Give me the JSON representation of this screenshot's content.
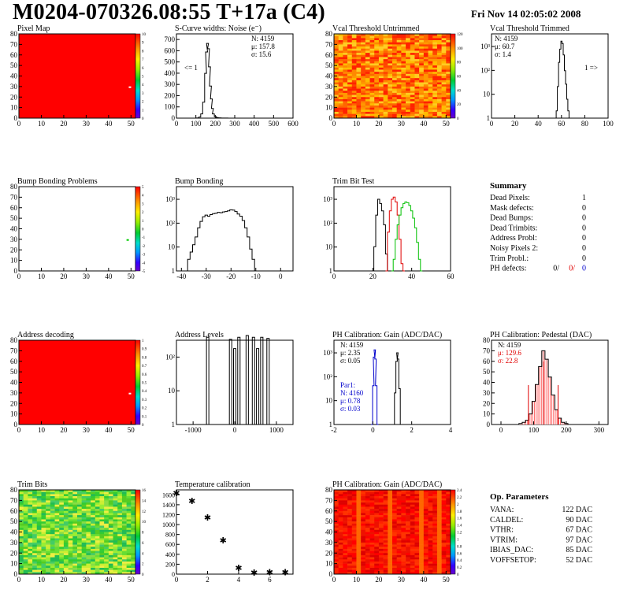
{
  "header": {
    "title": "M0204-070326.08:55 T+17a (C4)",
    "date": "Fri Nov 14 02:05:02 2008"
  },
  "colors": {
    "red_map": "#ff0000",
    "black_line": "#000000",
    "red_line": "#e00000",
    "green_line": "#00c000",
    "blue_line": "#0000cc",
    "green_dot": "#00cc00"
  },
  "panels": [
    {
      "id": "pixel-map",
      "title": "Pixel Map",
      "x_ticks": [
        "0",
        "10",
        "20",
        "30",
        "40",
        "50"
      ],
      "y_ticks": [
        "0",
        "10",
        "20",
        "30",
        "40",
        "50",
        "60",
        "70",
        "80"
      ],
      "z_ticks": [
        "0",
        "1",
        "2",
        "3",
        "4",
        "5",
        "6",
        "7",
        "8",
        "9",
        "10"
      ]
    },
    {
      "id": "scurve-noise",
      "title": "S-Curve widths: Noise (e⁻)",
      "x_ticks": [
        "0",
        "100",
        "200",
        "300",
        "400",
        "500",
        "600"
      ],
      "y_ticks": [
        "0",
        "100",
        "200",
        "300",
        "400",
        "500",
        "600",
        "700"
      ],
      "stats": [
        "N: 4159",
        "μ: 157.8",
        "σ: 15.6"
      ],
      "annotation": "<= 1"
    },
    {
      "id": "vcal-untrimmed",
      "title": "Vcal Threshold Untrimmed",
      "x_ticks": [
        "0",
        "10",
        "20",
        "30",
        "40",
        "50"
      ],
      "y_ticks": [
        "0",
        "10",
        "20",
        "30",
        "40",
        "50",
        "60",
        "70",
        "80"
      ],
      "z_ticks": [
        "0",
        "20",
        "40",
        "60",
        "80",
        "100",
        "120"
      ]
    },
    {
      "id": "vcal-trimmed",
      "title": "Vcal Threshold Trimmed",
      "x_ticks": [
        "0",
        "20",
        "40",
        "60",
        "80",
        "100"
      ],
      "y_ticks": [
        "1",
        "10",
        "10²",
        "10³"
      ],
      "stats": [
        "N: 4159",
        "μ: 60.7",
        "σ:  1.4"
      ],
      "annotation": "1 =>"
    },
    {
      "id": "bump-problems",
      "title": "Bump Bonding Problems",
      "x_ticks": [
        "0",
        "10",
        "20",
        "30",
        "40",
        "50"
      ],
      "y_ticks": [
        "0",
        "10",
        "20",
        "30",
        "40",
        "50",
        "60",
        "70",
        "80"
      ],
      "z_ticks": [
        "-5",
        "-4",
        "-3",
        "-2",
        "-1",
        "0",
        "1",
        "2",
        "3",
        "4",
        "5"
      ]
    },
    {
      "id": "bump-bonding",
      "title": "Bump Bonding",
      "x_ticks": [
        "-40",
        "-30",
        "-20",
        "-10",
        "0"
      ],
      "y_ticks": [
        "1",
        "10",
        "10²",
        "10³"
      ]
    },
    {
      "id": "trim-bit-test",
      "title": "Trim Bit Test",
      "x_ticks": [
        "0",
        "20",
        "40",
        "60"
      ],
      "y_ticks": [
        "1",
        "10",
        "10²",
        "10³"
      ]
    },
    {
      "id": "address-decoding",
      "title": "Address decoding",
      "x_ticks": [
        "0",
        "10",
        "20",
        "30",
        "40",
        "50"
      ],
      "y_ticks": [
        "0",
        "10",
        "20",
        "30",
        "40",
        "50",
        "60",
        "70",
        "80"
      ],
      "z_ticks": [
        "0",
        "0.1",
        "0.2",
        "0.3",
        "0.4",
        "0.5",
        "0.6",
        "0.7",
        "0.8",
        "0.9",
        "1"
      ]
    },
    {
      "id": "address-levels",
      "title": "Address Levels",
      "x_ticks": [
        "-1000",
        "0",
        "1000"
      ],
      "y_ticks": [
        "1",
        "10",
        "10²"
      ]
    },
    {
      "id": "ph-gain",
      "title": "PH Calibration: Gain (ADC/DAC)",
      "x_ticks": [
        "-2",
        "0",
        "2",
        "4"
      ],
      "y_ticks": [
        "1",
        "10",
        "10²",
        "10³"
      ],
      "stats": [
        "N: 4159",
        "μ: 2.35",
        "σ: 0.05"
      ],
      "stats2": [
        "Par1:",
        "N: 4160",
        "μ: 0.78",
        "σ: 0.03"
      ]
    },
    {
      "id": "ph-pedestal",
      "title": "PH Calibration: Pedestal (DAC)",
      "x_ticks": [
        "0",
        "100",
        "200",
        "300"
      ],
      "y_ticks": [
        "0",
        "10",
        "20",
        "30",
        "40",
        "50",
        "60",
        "70",
        "80"
      ],
      "stats": [
        "N: 4159",
        "μ: 129.6",
        "σ: 22.8"
      ]
    },
    {
      "id": "trim-bits",
      "title": "Trim Bits",
      "x_ticks": [
        "0",
        "10",
        "20",
        "30",
        "40",
        "50"
      ],
      "y_ticks": [
        "0",
        "10",
        "20",
        "30",
        "40",
        "50",
        "60",
        "70",
        "80"
      ],
      "z_ticks": [
        "0",
        "2",
        "4",
        "6",
        "8",
        "10",
        "12",
        "14",
        "16"
      ]
    },
    {
      "id": "temperature-calibration",
      "title": "Temperature calibration",
      "x_ticks": [
        "0",
        "2",
        "4",
        "6"
      ],
      "y_ticks": [
        "0",
        "200",
        "400",
        "600",
        "800",
        "1000",
        "1200",
        "1400",
        "1600"
      ]
    },
    {
      "id": "ph-gain-map",
      "title": "PH Calibration: Gain (ADC/DAC)",
      "x_ticks": [
        "0",
        "10",
        "20",
        "30",
        "40",
        "50"
      ],
      "y_ticks": [
        "0",
        "10",
        "20",
        "30",
        "40",
        "50",
        "60",
        "70",
        "80"
      ],
      "z_ticks": [
        "0",
        "0.2",
        "0.4",
        "0.6",
        "0.8",
        "1",
        "1.2",
        "1.4",
        "1.6",
        "1.8",
        "2",
        "2.2",
        "2.4"
      ]
    }
  ],
  "summary": {
    "title": "Summary",
    "rows": [
      {
        "label": "Dead Pixels:",
        "value": "1"
      },
      {
        "label": "Mask defects:",
        "value": "0"
      },
      {
        "label": "Dead Bumps:",
        "value": "0"
      },
      {
        "label": "Dead Trimbits:",
        "value": "0"
      },
      {
        "label": "Address Probl:",
        "value": "0"
      },
      {
        "label": "Noisy Pixels 2:",
        "value": "0"
      },
      {
        "label": "Trim Probl.:",
        "value": "0"
      }
    ],
    "ph_label": "PH defects:",
    "ph_values": [
      "0/",
      "0/",
      "0"
    ]
  },
  "op_params": {
    "title": "Op. Parameters",
    "rows": [
      {
        "label": "VANA:",
        "value": "122 DAC"
      },
      {
        "label": "CALDEL:",
        "value": "90 DAC"
      },
      {
        "label": "VTHR:",
        "value": "67 DAC"
      },
      {
        "label": "VTRIM:",
        "value": "97 DAC"
      },
      {
        "label": "IBIAS_DAC:",
        "value": "85 DAC"
      },
      {
        "label": "VOFFSETOP:",
        "value": "52 DAC"
      }
    ]
  },
  "chart_data": [
    {
      "type": "heatmap",
      "panel": "pixel-map",
      "title": "Pixel Map",
      "xlim": [
        0,
        52
      ],
      "ylim": [
        0,
        80
      ],
      "zlim": [
        0,
        10
      ],
      "uniform_value": 10,
      "outliers": [
        {
          "x": 49,
          "y": 29,
          "value": 0
        }
      ]
    },
    {
      "type": "bar",
      "panel": "scurve-noise",
      "title": "S-Curve widths: Noise (e⁻)",
      "xlim": [
        0,
        600
      ],
      "ylim": [
        0,
        750
      ],
      "x": [
        110,
        120,
        130,
        140,
        150,
        155,
        160,
        165,
        170,
        175,
        180,
        185,
        190,
        200,
        210,
        220,
        240,
        260
      ],
      "values": [
        2,
        10,
        40,
        150,
        420,
        620,
        700,
        650,
        480,
        300,
        180,
        90,
        40,
        15,
        6,
        3,
        1,
        1
      ]
    },
    {
      "type": "heatmap",
      "panel": "vcal-untrimmed",
      "title": "Vcal Threshold Untrimmed",
      "xlim": [
        0,
        52
      ],
      "ylim": [
        0,
        80
      ],
      "zlim": [
        0,
        130
      ],
      "typical_value": 90
    },
    {
      "type": "bar",
      "panel": "vcal-trimmed",
      "title": "Vcal Threshold Trimmed",
      "xlim": [
        0,
        100
      ],
      "log_y": true,
      "x": [
        56,
        57,
        58,
        59,
        60,
        61,
        62,
        63,
        64,
        65,
        66,
        67
      ],
      "values": [
        2,
        20,
        200,
        700,
        1500,
        1200,
        400,
        90,
        25,
        6,
        2,
        1
      ]
    },
    {
      "type": "heatmap",
      "panel": "bump-problems",
      "title": "Bump Bonding Problems",
      "xlim": [
        0,
        52
      ],
      "ylim": [
        0,
        80
      ],
      "zlim": [
        -5,
        5
      ],
      "outliers": [
        {
          "x": 48,
          "y": 29,
          "value": 0
        }
      ]
    },
    {
      "type": "bar",
      "panel": "bump-bonding",
      "title": "Bump Bonding",
      "xlim": [
        -42,
        5
      ],
      "log_y": true,
      "x": [
        -38,
        -37,
        -36,
        -35,
        -34,
        -33,
        -32,
        -31,
        -30,
        -29,
        -28,
        -27,
        -26,
        -25,
        -24,
        -23,
        -22,
        -21,
        -20,
        -19,
        -18,
        -17,
        -16,
        -15,
        -14,
        -13,
        -12,
        -11,
        -10,
        -2,
        2
      ],
      "values": [
        1,
        3,
        6,
        12,
        25,
        60,
        110,
        170,
        200,
        180,
        210,
        230,
        240,
        260,
        250,
        270,
        280,
        300,
        330,
        320,
        280,
        220,
        180,
        120,
        60,
        25,
        8,
        3,
        1,
        1,
        1
      ]
    },
    {
      "type": "line",
      "panel": "trim-bit-test",
      "title": "Trim Bit Test",
      "xlim": [
        0,
        60
      ],
      "log_y": true,
      "series": [
        {
          "color": "black",
          "x": [
            20,
            21,
            22,
            23,
            24,
            25,
            26,
            27,
            28
          ],
          "values": [
            1,
            10,
            200,
            900,
            600,
            300,
            80,
            5,
            1
          ]
        },
        {
          "color": "red",
          "x": [
            27,
            28,
            29,
            30,
            31,
            32,
            33,
            34,
            35,
            36
          ],
          "values": [
            1,
            40,
            300,
            900,
            1100,
            700,
            200,
            20,
            2,
            1
          ]
        },
        {
          "color": "green",
          "x": [
            30,
            31,
            32,
            33,
            34,
            35,
            36,
            37,
            38,
            39,
            40,
            41,
            42,
            43,
            44,
            45
          ],
          "values": [
            1,
            3,
            20,
            80,
            200,
            400,
            600,
            700,
            650,
            500,
            300,
            150,
            60,
            15,
            3,
            1
          ]
        }
      ]
    },
    {
      "type": "heatmap",
      "panel": "address-decoding",
      "title": "Address decoding",
      "xlim": [
        0,
        52
      ],
      "ylim": [
        0,
        80
      ],
      "zlim": [
        0,
        1
      ],
      "uniform_value": 1,
      "outliers": [
        {
          "x": 49,
          "y": 29,
          "value": 0
        }
      ]
    },
    {
      "type": "bar",
      "panel": "address-levels",
      "title": "Address Levels",
      "xlim": [
        -1400,
        1400
      ],
      "log_y": true,
      "x": [
        -650,
        -100,
        0,
        100,
        300,
        450,
        550,
        650,
        800
      ],
      "values": [
        700,
        600,
        300,
        700,
        800,
        700,
        300,
        700,
        650
      ]
    },
    {
      "type": "line",
      "panel": "ph-gain",
      "title": "PH Calibration: Gain (ADC/DAC)",
      "xlim": [
        -2,
        6
      ],
      "log_y": true,
      "series": [
        {
          "color": "black",
          "x": [
            2.1,
            2.2,
            2.3,
            2.35,
            2.4,
            2.5,
            2.6
          ],
          "values": [
            1,
            20,
            400,
            900,
            500,
            30,
            1
          ]
        },
        {
          "color": "blue",
          "x": [
            0.6,
            0.7,
            0.75,
            0.8,
            0.85,
            0.9,
            1.0
          ],
          "values": [
            1,
            40,
            600,
            1200,
            500,
            40,
            1
          ]
        }
      ]
    },
    {
      "type": "bar",
      "panel": "ph-pedestal",
      "title": "PH Calibration: Pedestal (DAC)",
      "xlim": [
        0,
        350
      ],
      "ylim": [
        0,
        80
      ],
      "x": [
        60,
        70,
        80,
        90,
        100,
        110,
        120,
        130,
        140,
        150,
        160,
        170,
        180,
        190,
        200
      ],
      "values": [
        1,
        2,
        4,
        10,
        22,
        38,
        55,
        70,
        62,
        45,
        28,
        14,
        6,
        2,
        1
      ]
    },
    {
      "type": "heatmap",
      "panel": "trim-bits",
      "title": "Trim Bits",
      "xlim": [
        0,
        52
      ],
      "ylim": [
        0,
        80
      ],
      "zlim": [
        0,
        16
      ],
      "typical_value": 9
    },
    {
      "type": "scatter",
      "panel": "temperature-calibration",
      "title": "Temperature calibration",
      "xlim": [
        0,
        7.5
      ],
      "ylim": [
        0,
        1700
      ],
      "x": [
        0,
        1,
        2,
        3,
        4,
        5,
        6,
        7
      ],
      "values": [
        1640,
        1480,
        1140,
        680,
        130,
        30,
        40,
        40
      ]
    },
    {
      "type": "heatmap",
      "panel": "ph-gain-map",
      "title": "PH Calibration: Gain (ADC/DAC)",
      "xlim": [
        0,
        52
      ],
      "ylim": [
        0,
        80
      ],
      "zlim": [
        0,
        2.4
      ],
      "typical_value": 2.35
    }
  ]
}
